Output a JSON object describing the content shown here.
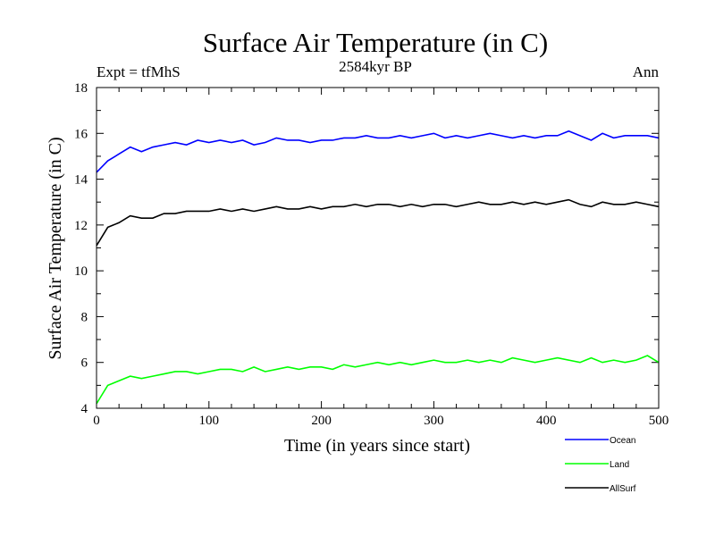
{
  "chart_data": {
    "type": "line",
    "title": "Surface Air Temperature (in C)",
    "subtitle": "2584kyr BP",
    "left_label": "Expt = tfMhS",
    "right_label": "Ann",
    "xlabel": "Time (in years since start)",
    "ylabel": "Surface Air Temperature (in C)",
    "xlim": [
      0,
      500
    ],
    "ylim": [
      4,
      18
    ],
    "xticks": [
      0,
      100,
      200,
      300,
      400,
      500
    ],
    "yticks": [
      4,
      6,
      8,
      10,
      12,
      14,
      16,
      18
    ],
    "grid": false,
    "legend_position": "bottom-right, below plot",
    "x": [
      0,
      10,
      20,
      30,
      40,
      50,
      60,
      70,
      80,
      90,
      100,
      110,
      120,
      130,
      140,
      150,
      160,
      170,
      180,
      190,
      200,
      210,
      220,
      230,
      240,
      250,
      260,
      270,
      280,
      290,
      300,
      310,
      320,
      330,
      340,
      350,
      360,
      370,
      380,
      390,
      400,
      410,
      420,
      430,
      440,
      450,
      460,
      470,
      480,
      490,
      500
    ],
    "series": [
      {
        "name": "Ocean",
        "color": "#0000ff",
        "values": [
          14.3,
          14.8,
          15.1,
          15.4,
          15.2,
          15.4,
          15.5,
          15.6,
          15.5,
          15.7,
          15.6,
          15.7,
          15.6,
          15.7,
          15.5,
          15.6,
          15.8,
          15.7,
          15.7,
          15.6,
          15.7,
          15.7,
          15.8,
          15.8,
          15.9,
          15.8,
          15.8,
          15.9,
          15.8,
          15.9,
          16.0,
          15.8,
          15.9,
          15.8,
          15.9,
          16.0,
          15.9,
          15.8,
          15.9,
          15.8,
          15.9,
          15.9,
          16.1,
          15.9,
          15.7,
          16.0,
          15.8,
          15.9,
          15.9,
          15.9,
          15.8
        ]
      },
      {
        "name": "Land",
        "color": "#00ff00",
        "values": [
          4.2,
          5.0,
          5.2,
          5.4,
          5.3,
          5.4,
          5.5,
          5.6,
          5.6,
          5.5,
          5.6,
          5.7,
          5.7,
          5.6,
          5.8,
          5.6,
          5.7,
          5.8,
          5.7,
          5.8,
          5.8,
          5.7,
          5.9,
          5.8,
          5.9,
          6.0,
          5.9,
          6.0,
          5.9,
          6.0,
          6.1,
          6.0,
          6.0,
          6.1,
          6.0,
          6.1,
          6.0,
          6.2,
          6.1,
          6.0,
          6.1,
          6.2,
          6.1,
          6.0,
          6.2,
          6.0,
          6.1,
          6.0,
          6.1,
          6.3,
          6.0
        ]
      },
      {
        "name": "AllSurf",
        "color": "#000000",
        "values": [
          11.1,
          11.9,
          12.1,
          12.4,
          12.3,
          12.3,
          12.5,
          12.5,
          12.6,
          12.6,
          12.6,
          12.7,
          12.6,
          12.7,
          12.6,
          12.7,
          12.8,
          12.7,
          12.7,
          12.8,
          12.7,
          12.8,
          12.8,
          12.9,
          12.8,
          12.9,
          12.9,
          12.8,
          12.9,
          12.8,
          12.9,
          12.9,
          12.8,
          12.9,
          13.0,
          12.9,
          12.9,
          13.0,
          12.9,
          13.0,
          12.9,
          13.0,
          13.1,
          12.9,
          12.8,
          13.0,
          12.9,
          12.9,
          13.0,
          12.9,
          12.8
        ]
      }
    ]
  }
}
